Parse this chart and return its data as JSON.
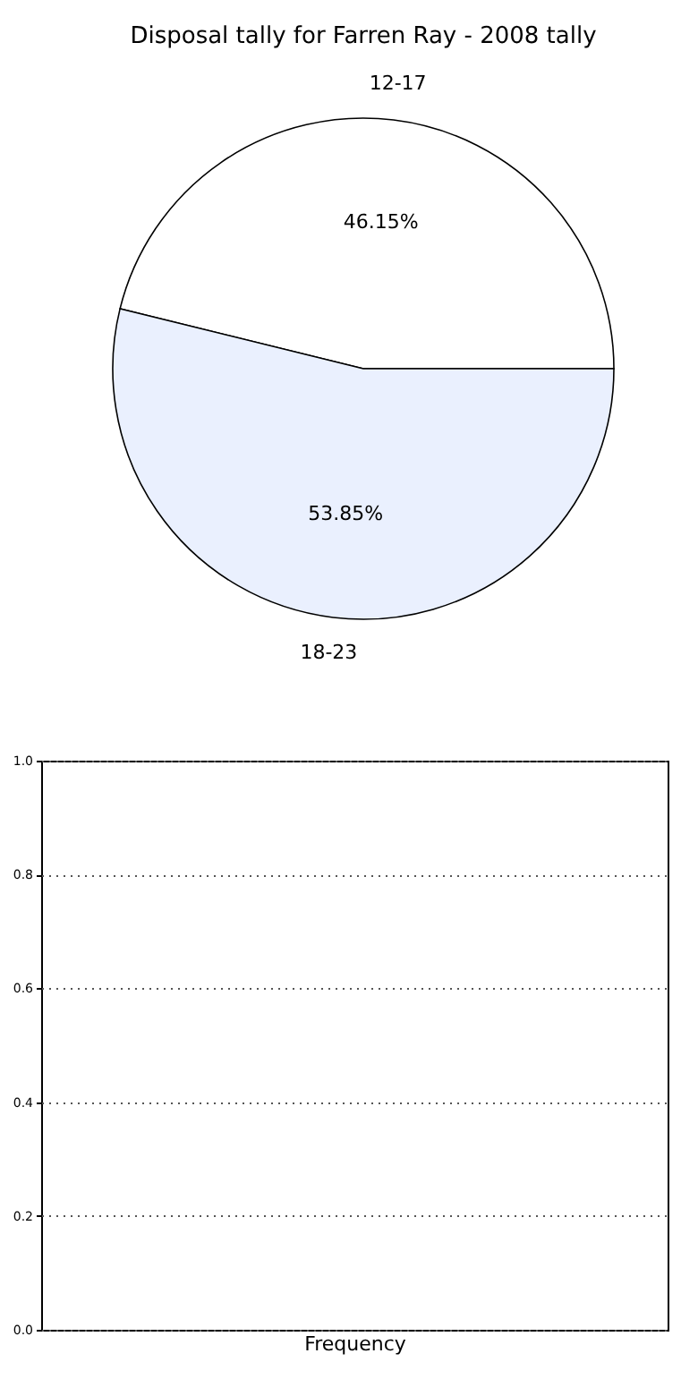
{
  "chart_data": [
    {
      "type": "pie",
      "title": "Disposal tally for Farren Ray - 2008 tally",
      "categories": [
        "12-17",
        "18-23"
      ],
      "values": [
        46.15,
        53.85
      ],
      "colors": [
        "#ffffff",
        "#eaf0fe"
      ],
      "value_labels": [
        "46.15%",
        "53.85%"
      ]
    },
    {
      "type": "bar",
      "xlabel": "Frequency",
      "categories": [
        null
      ],
      "values": [
        null
      ],
      "ylim": [
        0,
        1
      ],
      "yticks": [
        {
          "value": 0,
          "label": "0.0"
        },
        0.2,
        0.4,
        0.6,
        0.8,
        {
          "value": 1,
          "label": "1.0"
        }
      ],
      "grid": "y",
      "tick_labels": "y"
    }
  ]
}
